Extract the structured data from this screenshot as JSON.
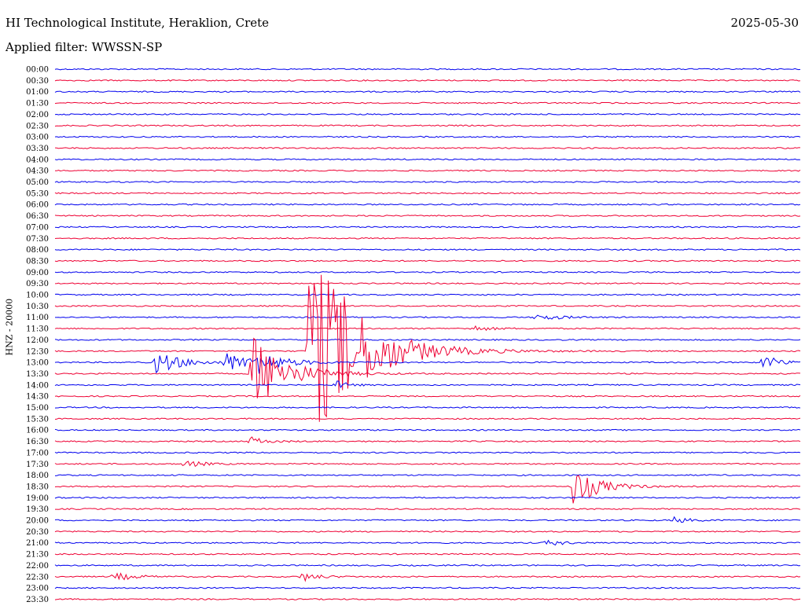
{
  "header": {
    "station": "HI Technological Institute, Heraklion, Crete",
    "date": "2025-05-30",
    "filter": "Applied filter: WWSSN-SP",
    "channel_label": "HNZ - 20000"
  },
  "colors": {
    "blue": "#0000ee",
    "red": "#ee0033"
  },
  "chart_data": {
    "type": "seismogram",
    "row_labels": [
      "00:00",
      "00:30",
      "01:00",
      "01:30",
      "02:00",
      "02:30",
      "03:00",
      "03:30",
      "04:00",
      "04:30",
      "05:00",
      "05:30",
      "06:00",
      "06:30",
      "07:00",
      "07:30",
      "08:00",
      "08:30",
      "09:00",
      "09:30",
      "10:00",
      "10:30",
      "11:00",
      "11:30",
      "12:00",
      "12:30",
      "13:00",
      "13:30",
      "14:00",
      "14:30",
      "15:00",
      "15:30",
      "16:00",
      "16:30",
      "17:00",
      "17:30",
      "18:00",
      "18:30",
      "19:00",
      "19:30",
      "20:00",
      "20:30",
      "21:00",
      "21:30",
      "22:00",
      "22:30",
      "23:00",
      "23:30"
    ],
    "events": [
      {
        "row": 26,
        "pos": 0.135,
        "amp": 16,
        "dur": 0.03
      },
      {
        "row": 26,
        "pos": 0.23,
        "amp": 12,
        "dur": 0.03
      },
      {
        "row": 26,
        "pos": 0.265,
        "amp": 14,
        "dur": 0.035
      },
      {
        "row": 26,
        "pos": 0.95,
        "amp": 10,
        "dur": 0.02
      },
      {
        "row": 27,
        "pos": 0.265,
        "amp": 52,
        "dur": 0.04
      },
      {
        "row": 25,
        "pos": 0.34,
        "amp": 130,
        "dur": 0.06
      },
      {
        "row": 25,
        "pos": 0.37,
        "amp": 22,
        "dur": 0.03
      },
      {
        "row": 28,
        "pos": 0.375,
        "amp": 6,
        "dur": 0.015
      },
      {
        "row": 37,
        "pos": 0.695,
        "amp": 26,
        "dur": 0.03
      },
      {
        "row": 33,
        "pos": 0.26,
        "amp": 6,
        "dur": 0.02
      },
      {
        "row": 35,
        "pos": 0.175,
        "amp": 5,
        "dur": 0.02
      },
      {
        "row": 45,
        "pos": 0.08,
        "amp": 5,
        "dur": 0.025
      },
      {
        "row": 45,
        "pos": 0.33,
        "amp": 6,
        "dur": 0.02
      },
      {
        "row": 22,
        "pos": 0.645,
        "amp": 4,
        "dur": 0.03
      },
      {
        "row": 23,
        "pos": 0.56,
        "amp": 4,
        "dur": 0.02
      },
      {
        "row": 40,
        "pos": 0.83,
        "amp": 4,
        "dur": 0.02
      },
      {
        "row": 42,
        "pos": 0.66,
        "amp": 4,
        "dur": 0.02
      }
    ]
  }
}
